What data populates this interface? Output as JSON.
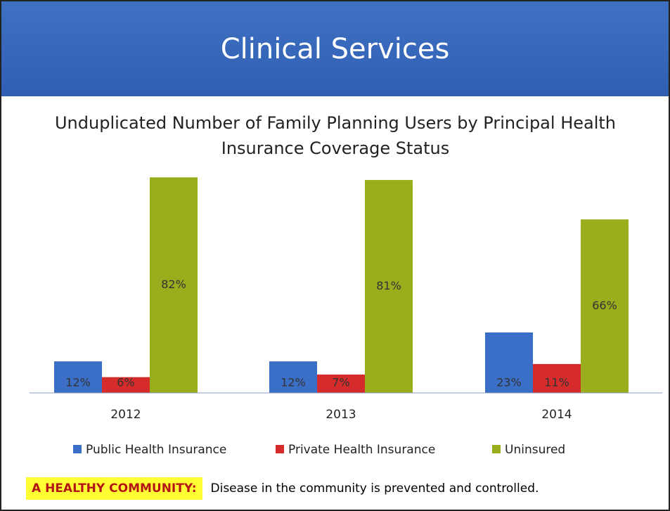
{
  "header": {
    "title": "Clinical Services"
  },
  "chart_data": {
    "type": "bar",
    "title": "Unduplicated Number of Family Planning Users by Principal Health Insurance Coverage Status",
    "categories": [
      "2012",
      "2013",
      "2014"
    ],
    "series": [
      {
        "name": "Public Health Insurance",
        "color": "#3b6ec6",
        "values": [
          12,
          12,
          23
        ],
        "value_labels": [
          "12%",
          "12%",
          "23%"
        ]
      },
      {
        "name": "Private Health Insurance",
        "color": "#d52b2b",
        "values": [
          6,
          7,
          11
        ],
        "value_labels": [
          "6%",
          "7%",
          "11%"
        ]
      },
      {
        "name": "Uninsured",
        "color": "#9aad1d",
        "values": [
          82,
          81,
          66
        ],
        "value_labels": [
          "82%",
          "81%",
          "66%"
        ]
      }
    ]
  },
  "footer": {
    "label": "A HEALTHY COMMUNITY:",
    "text": "Disease in the community is prevented and controlled."
  }
}
